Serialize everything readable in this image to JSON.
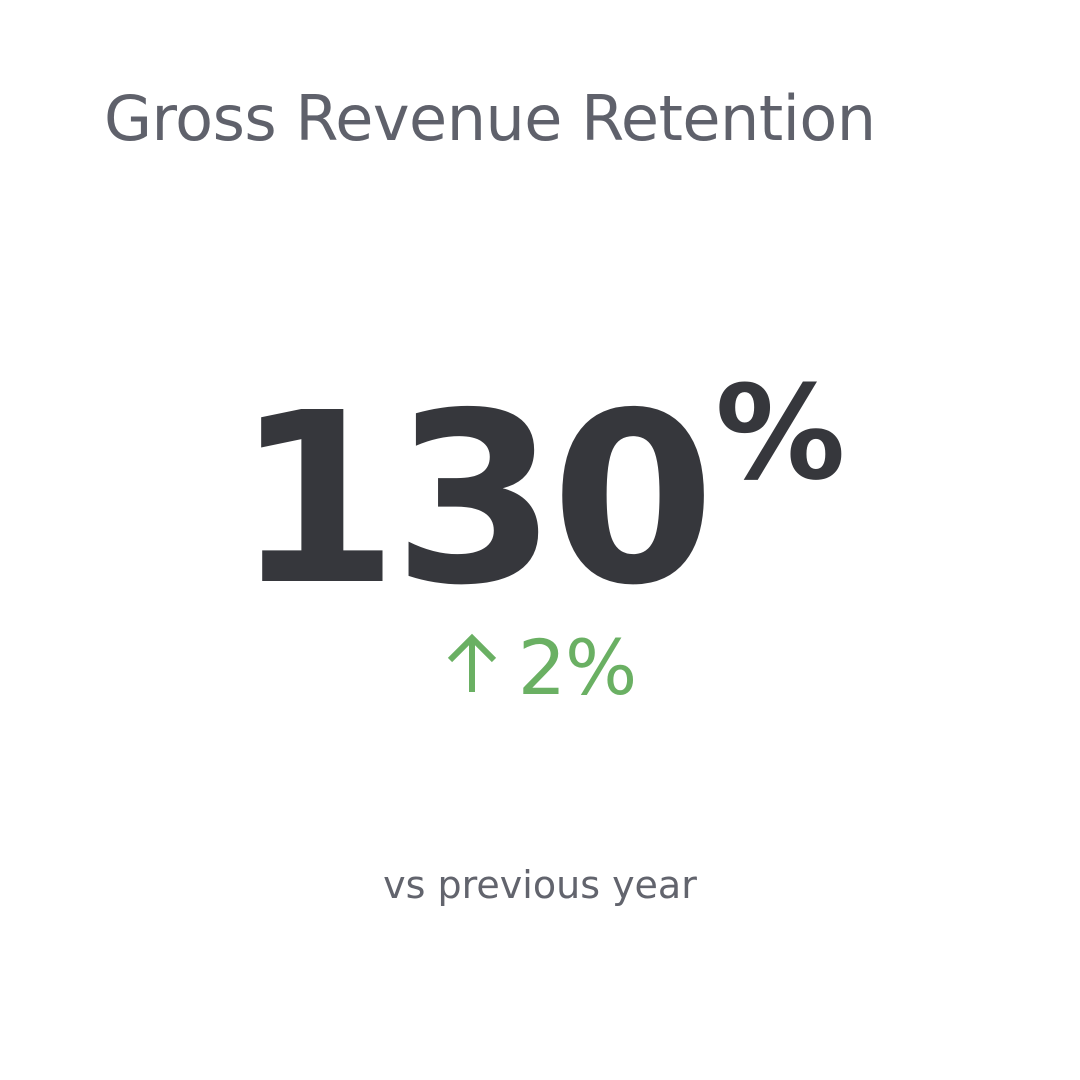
{
  "widget": {
    "title": "Gross Revenue Retention",
    "value": "130",
    "value_unit": "%",
    "change": {
      "direction_icon": "arrow-up-icon",
      "value": "2%"
    },
    "comparison_label": "vs previous year"
  },
  "colors": {
    "background": "#ffffff",
    "title": "#5f616b",
    "value": "#36373c",
    "positive": "#6ab063",
    "label": "#62646d"
  }
}
